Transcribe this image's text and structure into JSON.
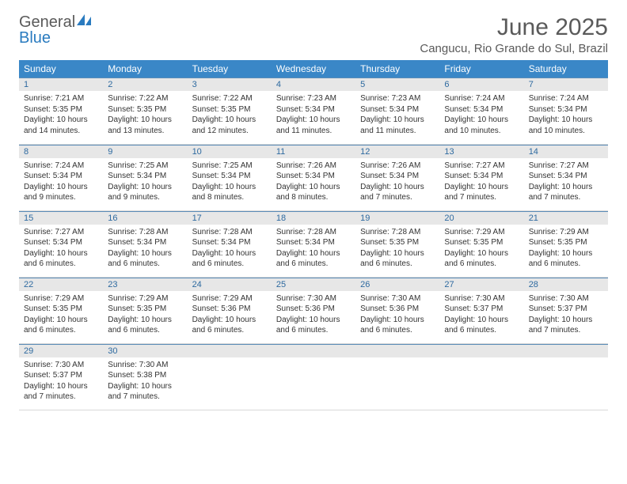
{
  "logo": {
    "line1": "General",
    "line2": "Blue"
  },
  "title": "June 2025",
  "location": "Cangucu, Rio Grande do Sul, Brazil",
  "colors": {
    "header_bg": "#3a87c7",
    "header_text": "#ffffff",
    "daynum_bg": "#e7e7e7",
    "daynum_text": "#2e6aa0",
    "daynum_border": "#5a8cb8",
    "body_text": "#333333",
    "title_text": "#5a5a5a",
    "logo_blue": "#2a7bbf"
  },
  "weekdays": [
    "Sunday",
    "Monday",
    "Tuesday",
    "Wednesday",
    "Thursday",
    "Friday",
    "Saturday"
  ],
  "days": [
    {
      "n": 1,
      "sunrise": "7:21 AM",
      "sunset": "5:35 PM",
      "daylight": "10 hours and 14 minutes."
    },
    {
      "n": 2,
      "sunrise": "7:22 AM",
      "sunset": "5:35 PM",
      "daylight": "10 hours and 13 minutes."
    },
    {
      "n": 3,
      "sunrise": "7:22 AM",
      "sunset": "5:35 PM",
      "daylight": "10 hours and 12 minutes."
    },
    {
      "n": 4,
      "sunrise": "7:23 AM",
      "sunset": "5:34 PM",
      "daylight": "10 hours and 11 minutes."
    },
    {
      "n": 5,
      "sunrise": "7:23 AM",
      "sunset": "5:34 PM",
      "daylight": "10 hours and 11 minutes."
    },
    {
      "n": 6,
      "sunrise": "7:24 AM",
      "sunset": "5:34 PM",
      "daylight": "10 hours and 10 minutes."
    },
    {
      "n": 7,
      "sunrise": "7:24 AM",
      "sunset": "5:34 PM",
      "daylight": "10 hours and 10 minutes."
    },
    {
      "n": 8,
      "sunrise": "7:24 AM",
      "sunset": "5:34 PM",
      "daylight": "10 hours and 9 minutes."
    },
    {
      "n": 9,
      "sunrise": "7:25 AM",
      "sunset": "5:34 PM",
      "daylight": "10 hours and 9 minutes."
    },
    {
      "n": 10,
      "sunrise": "7:25 AM",
      "sunset": "5:34 PM",
      "daylight": "10 hours and 8 minutes."
    },
    {
      "n": 11,
      "sunrise": "7:26 AM",
      "sunset": "5:34 PM",
      "daylight": "10 hours and 8 minutes."
    },
    {
      "n": 12,
      "sunrise": "7:26 AM",
      "sunset": "5:34 PM",
      "daylight": "10 hours and 7 minutes."
    },
    {
      "n": 13,
      "sunrise": "7:27 AM",
      "sunset": "5:34 PM",
      "daylight": "10 hours and 7 minutes."
    },
    {
      "n": 14,
      "sunrise": "7:27 AM",
      "sunset": "5:34 PM",
      "daylight": "10 hours and 7 minutes."
    },
    {
      "n": 15,
      "sunrise": "7:27 AM",
      "sunset": "5:34 PM",
      "daylight": "10 hours and 6 minutes."
    },
    {
      "n": 16,
      "sunrise": "7:28 AM",
      "sunset": "5:34 PM",
      "daylight": "10 hours and 6 minutes."
    },
    {
      "n": 17,
      "sunrise": "7:28 AM",
      "sunset": "5:34 PM",
      "daylight": "10 hours and 6 minutes."
    },
    {
      "n": 18,
      "sunrise": "7:28 AM",
      "sunset": "5:34 PM",
      "daylight": "10 hours and 6 minutes."
    },
    {
      "n": 19,
      "sunrise": "7:28 AM",
      "sunset": "5:35 PM",
      "daylight": "10 hours and 6 minutes."
    },
    {
      "n": 20,
      "sunrise": "7:29 AM",
      "sunset": "5:35 PM",
      "daylight": "10 hours and 6 minutes."
    },
    {
      "n": 21,
      "sunrise": "7:29 AM",
      "sunset": "5:35 PM",
      "daylight": "10 hours and 6 minutes."
    },
    {
      "n": 22,
      "sunrise": "7:29 AM",
      "sunset": "5:35 PM",
      "daylight": "10 hours and 6 minutes."
    },
    {
      "n": 23,
      "sunrise": "7:29 AM",
      "sunset": "5:35 PM",
      "daylight": "10 hours and 6 minutes."
    },
    {
      "n": 24,
      "sunrise": "7:29 AM",
      "sunset": "5:36 PM",
      "daylight": "10 hours and 6 minutes."
    },
    {
      "n": 25,
      "sunrise": "7:30 AM",
      "sunset": "5:36 PM",
      "daylight": "10 hours and 6 minutes."
    },
    {
      "n": 26,
      "sunrise": "7:30 AM",
      "sunset": "5:36 PM",
      "daylight": "10 hours and 6 minutes."
    },
    {
      "n": 27,
      "sunrise": "7:30 AM",
      "sunset": "5:37 PM",
      "daylight": "10 hours and 6 minutes."
    },
    {
      "n": 28,
      "sunrise": "7:30 AM",
      "sunset": "5:37 PM",
      "daylight": "10 hours and 7 minutes."
    },
    {
      "n": 29,
      "sunrise": "7:30 AM",
      "sunset": "5:37 PM",
      "daylight": "10 hours and 7 minutes."
    },
    {
      "n": 30,
      "sunrise": "7:30 AM",
      "sunset": "5:38 PM",
      "daylight": "10 hours and 7 minutes."
    }
  ],
  "labels": {
    "sunrise": "Sunrise:",
    "sunset": "Sunset:",
    "daylight": "Daylight:"
  },
  "layout": {
    "start_weekday": 0,
    "rows": 5,
    "cols": 7
  }
}
